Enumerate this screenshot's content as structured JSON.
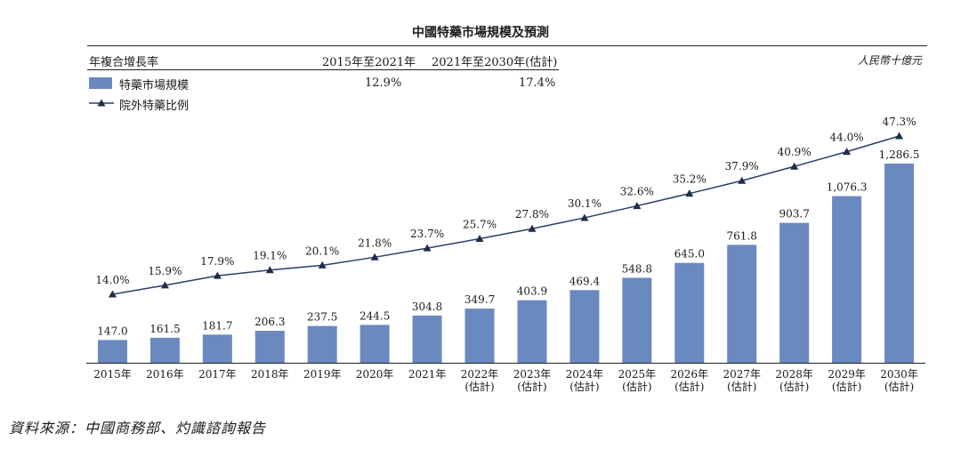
{
  "header": {
    "title": "中國特藥市場規模及預測",
    "unit": "人民幣十億元"
  },
  "legend_table": {
    "cagr_label": "年複合增長率",
    "periods": [
      "2015年至2021年",
      "2021年至2030年(估計)"
    ],
    "bar_series_label": "特藥市場規模",
    "bar_series_cagr": [
      "12.9%",
      "17.4%"
    ],
    "line_series_label": "院外特藥比例"
  },
  "source": "資料來源：中國商務部、灼識諮詢報告",
  "colors": {
    "bar": "#6a89bf",
    "line": "#2b3f66"
  },
  "chart_data": {
    "type": "bar",
    "title": "中國特藥市場規模及預測",
    "ylabel": "人民幣十億元",
    "categories": [
      "2015年",
      "2016年",
      "2017年",
      "2018年",
      "2019年",
      "2020年",
      "2021年",
      "2022年(估計)",
      "2023年(估計)",
      "2024年(估計)",
      "2025年(估計)",
      "2026年(估計)",
      "2027年(估計)",
      "2028年(估計)",
      "2029年(估計)",
      "2030年(估計)"
    ],
    "category_lines": [
      [
        "2015年"
      ],
      [
        "2016年"
      ],
      [
        "2017年"
      ],
      [
        "2018年"
      ],
      [
        "2019年"
      ],
      [
        "2020年"
      ],
      [
        "2021年"
      ],
      [
        "2022年",
        "(估計)"
      ],
      [
        "2023年",
        "(估計)"
      ],
      [
        "2024年",
        "(估計)"
      ],
      [
        "2025年",
        "(估計)"
      ],
      [
        "2026年",
        "(估計)"
      ],
      [
        "2027年",
        "(估計)"
      ],
      [
        "2028年",
        "(估計)"
      ],
      [
        "2029年",
        "(估計)"
      ],
      [
        "2030年",
        "(估計)"
      ]
    ],
    "series": [
      {
        "name": "特藥市場規模",
        "type": "bar",
        "values": [
          147.0,
          161.5,
          181.7,
          206.3,
          237.5,
          244.5,
          304.8,
          349.7,
          403.9,
          469.4,
          548.8,
          645.0,
          761.8,
          903.7,
          1076.3,
          1286.5
        ],
        "labels": [
          "147.0",
          "161.5",
          "181.7",
          "206.3",
          "237.5",
          "244.5",
          "304.8",
          "349.7",
          "403.9",
          "469.4",
          "548.8",
          "645.0",
          "761.8",
          "903.7",
          "1,076.3",
          "1,286.5"
        ]
      },
      {
        "name": "院外特藥比例",
        "type": "line",
        "values": [
          14.0,
          15.9,
          17.9,
          19.1,
          20.1,
          21.8,
          23.7,
          25.7,
          27.8,
          30.1,
          32.6,
          35.2,
          37.9,
          40.9,
          44.0,
          47.3
        ],
        "labels": [
          "14.0%",
          "15.9%",
          "17.9%",
          "19.1%",
          "20.1%",
          "21.8%",
          "23.7%",
          "25.7%",
          "27.8%",
          "30.1%",
          "32.6%",
          "35.2%",
          "37.9%",
          "40.9%",
          "44.0%",
          "47.3%"
        ]
      }
    ]
  }
}
